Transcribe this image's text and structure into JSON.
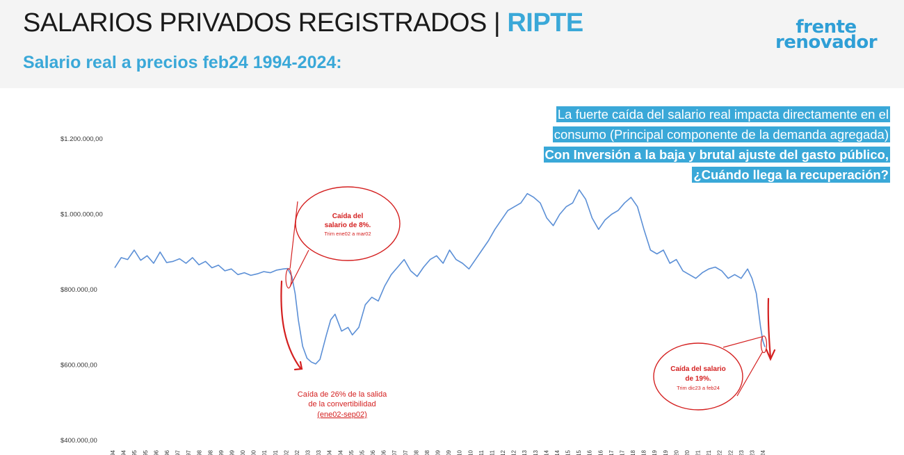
{
  "header": {
    "title_main": "SALARIOS PRIVADOS REGISTRADOS | ",
    "title_accent": "RIPTE",
    "subtitle": "Salario real a precios feb24 1994-2024:",
    "logo_line1": "frente",
    "logo_line2": "renovador"
  },
  "callout": {
    "line1": "La fuerte caída del salario real impacta directamente en el",
    "line2": "consumo (Principal componente de la demanda agregada)",
    "line3": "Con Inversión a la baja y brutal ajuste del gasto público,",
    "line4": "¿Cuándo llega la recuperación?"
  },
  "annotations": {
    "bubble1_title": "Caída del salario de 8%.",
    "bubble1_title_l1": "Caída del",
    "bubble1_title_l2": "salario de 8%.",
    "bubble1_sub": "Trim ene02 a mar02",
    "drop_note_l1": "Caída de 26% de la salida",
    "drop_note_l2": "de la convertibilidad",
    "drop_note_l3": "(ene02-sep02)",
    "bubble2_title_l1": "Caída del salario",
    "bubble2_title_l2": "de 19%.",
    "bubble2_sub": "Trim dic23 a feb24"
  },
  "colors": {
    "accent": "#3aa8d8",
    "line": "#5b8fd6",
    "annotation": "#d42020"
  },
  "chart_data": {
    "type": "line",
    "title": "Salario real a precios feb24 1994-2024:",
    "ylim": [
      400000,
      1200000
    ],
    "y_ticks": [
      {
        "value": 1200000,
        "label": "$1.200.000,00"
      },
      {
        "value": 1000000,
        "label": "$1.000.000,00"
      },
      {
        "value": 800000,
        "label": "$800.000,00"
      },
      {
        "value": 600000,
        "label": "$600.000,00"
      },
      {
        "value": 400000,
        "label": "$400.000,00"
      }
    ],
    "x_ticks": [
      "e-94",
      "j-94",
      "e-95",
      "j-95",
      "e-96",
      "j-96",
      "e-97",
      "j-97",
      "e-98",
      "j-98",
      "e-99",
      "j-99",
      "e-00",
      "j-00",
      "e-01",
      "j-01",
      "e-02",
      "j-02",
      "e-03",
      "j-03",
      "e-04",
      "j-04",
      "e-05",
      "j-05",
      "e-06",
      "j-06",
      "e-07",
      "j-07",
      "e-08",
      "j-08",
      "e-09",
      "j-09",
      "e-10",
      "j-10",
      "e-11",
      "j-11",
      "e-12",
      "j-12",
      "e-13",
      "j-13",
      "e-14",
      "j-14",
      "e-15",
      "j-15",
      "e-16",
      "j-16",
      "e-17",
      "j-17",
      "e-18",
      "j-18",
      "e-19",
      "j-19",
      "e-20",
      "j-20",
      "e-21",
      "j-21",
      "e-22",
      "j-22",
      "e-23",
      "j-23",
      "e-24"
    ],
    "x_start": 1994.0,
    "x_end": 2024.1,
    "series": [
      {
        "points": [
          [
            1994.0,
            858000
          ],
          [
            1994.3,
            885000
          ],
          [
            1994.6,
            880000
          ],
          [
            1994.9,
            905000
          ],
          [
            1995.2,
            878000
          ],
          [
            1995.5,
            890000
          ],
          [
            1995.8,
            870000
          ],
          [
            1996.1,
            900000
          ],
          [
            1996.4,
            872000
          ],
          [
            1996.7,
            875000
          ],
          [
            1997.0,
            882000
          ],
          [
            1997.3,
            870000
          ],
          [
            1997.6,
            885000
          ],
          [
            1997.9,
            866000
          ],
          [
            1998.2,
            875000
          ],
          [
            1998.5,
            858000
          ],
          [
            1998.8,
            865000
          ],
          [
            1999.1,
            850000
          ],
          [
            1999.4,
            855000
          ],
          [
            1999.7,
            840000
          ],
          [
            2000.0,
            845000
          ],
          [
            2000.3,
            838000
          ],
          [
            2000.6,
            842000
          ],
          [
            2000.9,
            848000
          ],
          [
            2001.2,
            845000
          ],
          [
            2001.5,
            852000
          ],
          [
            2001.8,
            855000
          ],
          [
            2002.0,
            856000
          ],
          [
            2002.2,
            835000
          ],
          [
            2002.35,
            790000
          ],
          [
            2002.5,
            720000
          ],
          [
            2002.7,
            650000
          ],
          [
            2002.9,
            618000
          ],
          [
            2003.1,
            608000
          ],
          [
            2003.3,
            603000
          ],
          [
            2003.5,
            615000
          ],
          [
            2003.8,
            680000
          ],
          [
            2004.0,
            720000
          ],
          [
            2004.2,
            735000
          ],
          [
            2004.5,
            690000
          ],
          [
            2004.8,
            700000
          ],
          [
            2005.0,
            680000
          ],
          [
            2005.3,
            700000
          ],
          [
            2005.6,
            760000
          ],
          [
            2005.9,
            780000
          ],
          [
            2006.2,
            770000
          ],
          [
            2006.5,
            810000
          ],
          [
            2006.8,
            840000
          ],
          [
            2007.1,
            860000
          ],
          [
            2007.4,
            880000
          ],
          [
            2007.7,
            850000
          ],
          [
            2008.0,
            835000
          ],
          [
            2008.3,
            860000
          ],
          [
            2008.6,
            880000
          ],
          [
            2008.9,
            890000
          ],
          [
            2009.2,
            870000
          ],
          [
            2009.5,
            905000
          ],
          [
            2009.8,
            880000
          ],
          [
            2010.1,
            870000
          ],
          [
            2010.4,
            855000
          ],
          [
            2010.7,
            880000
          ],
          [
            2011.0,
            905000
          ],
          [
            2011.3,
            930000
          ],
          [
            2011.6,
            960000
          ],
          [
            2011.9,
            985000
          ],
          [
            2012.2,
            1010000
          ],
          [
            2012.5,
            1020000
          ],
          [
            2012.8,
            1030000
          ],
          [
            2013.1,
            1055000
          ],
          [
            2013.4,
            1045000
          ],
          [
            2013.7,
            1030000
          ],
          [
            2014.0,
            990000
          ],
          [
            2014.3,
            970000
          ],
          [
            2014.6,
            1000000
          ],
          [
            2014.9,
            1020000
          ],
          [
            2015.2,
            1030000
          ],
          [
            2015.5,
            1065000
          ],
          [
            2015.8,
            1040000
          ],
          [
            2016.1,
            990000
          ],
          [
            2016.4,
            960000
          ],
          [
            2016.7,
            985000
          ],
          [
            2017.0,
            1000000
          ],
          [
            2017.3,
            1010000
          ],
          [
            2017.6,
            1030000
          ],
          [
            2017.9,
            1045000
          ],
          [
            2018.2,
            1020000
          ],
          [
            2018.5,
            960000
          ],
          [
            2018.8,
            905000
          ],
          [
            2019.1,
            895000
          ],
          [
            2019.4,
            905000
          ],
          [
            2019.7,
            870000
          ],
          [
            2020.0,
            880000
          ],
          [
            2020.3,
            850000
          ],
          [
            2020.6,
            840000
          ],
          [
            2020.9,
            830000
          ],
          [
            2021.2,
            845000
          ],
          [
            2021.5,
            855000
          ],
          [
            2021.8,
            860000
          ],
          [
            2022.1,
            850000
          ],
          [
            2022.4,
            830000
          ],
          [
            2022.7,
            840000
          ],
          [
            2023.0,
            830000
          ],
          [
            2023.3,
            855000
          ],
          [
            2023.5,
            830000
          ],
          [
            2023.7,
            790000
          ],
          [
            2023.9,
            700000
          ],
          [
            2024.0,
            665000
          ],
          [
            2024.1,
            648000
          ]
        ]
      }
    ]
  }
}
